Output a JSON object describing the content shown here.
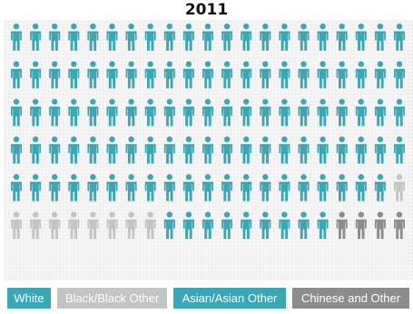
{
  "chart_data": {
    "type": "pictogram",
    "title": "2011",
    "rows": 6,
    "columns": 21,
    "categories": [
      {
        "name": "White",
        "count": 104,
        "color": "#3aa7b4"
      },
      {
        "name": "Black/Black Other",
        "count": 9,
        "color": "#c4c4c4"
      },
      {
        "name": "Asian/Asian Other",
        "count": 9,
        "color": "#3aa7b4"
      },
      {
        "name": "Chinese and Other",
        "count": 4,
        "color": "#8c8c8c"
      }
    ],
    "legend_position": "bottom"
  }
}
